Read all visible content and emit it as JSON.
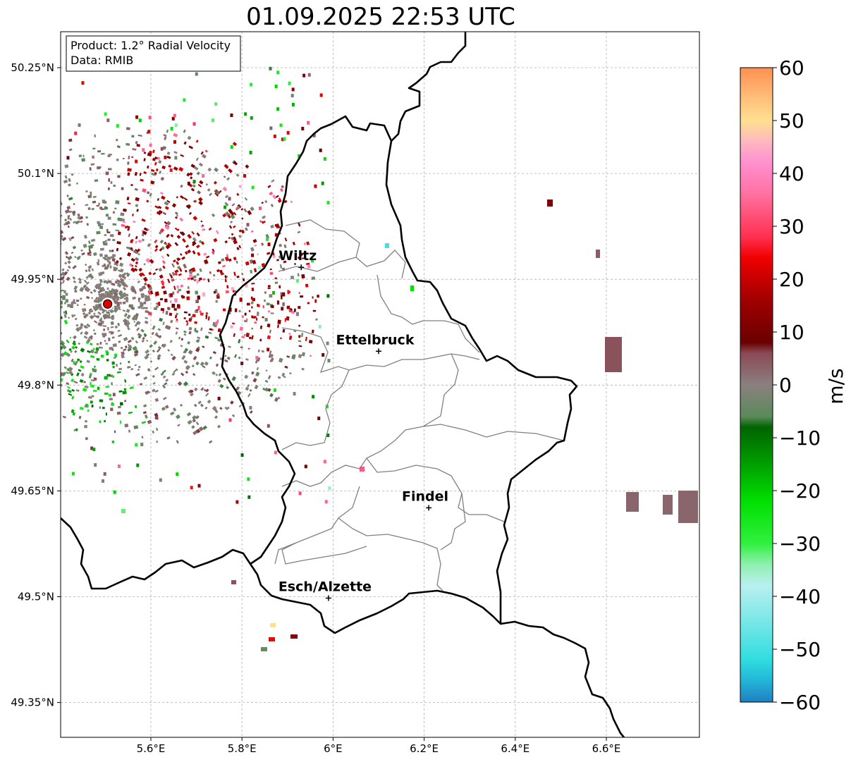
{
  "title": "01.09.2025 22:53 UTC",
  "info": {
    "product": "Product: 1.2° Radial Velocity",
    "data": "Data: RMIB"
  },
  "map": {
    "lon_range": [
      5.4,
      6.8
    ],
    "lat_range": [
      49.3,
      50.3
    ],
    "lat_ticks": [
      {
        "value": 50.25,
        "label": "50.25°N"
      },
      {
        "value": 50.1,
        "label": "50.1°N"
      },
      {
        "value": 49.95,
        "label": "49.95°N"
      },
      {
        "value": 49.8,
        "label": "49.8°N"
      },
      {
        "value": 49.65,
        "label": "49.65°N"
      },
      {
        "value": 49.5,
        "label": "49.5°N"
      },
      {
        "value": 49.35,
        "label": "49.35°N"
      }
    ],
    "lon_ticks": [
      {
        "value": 5.6,
        "label": "5.6°E"
      },
      {
        "value": 5.8,
        "label": "5.8°E"
      },
      {
        "value": 6.0,
        "label": "6°E"
      },
      {
        "value": 6.2,
        "label": "6.2°E"
      },
      {
        "value": 6.4,
        "label": "6.4°E"
      },
      {
        "value": 6.6,
        "label": "6.6°E"
      }
    ],
    "radar_site": {
      "lon": 5.505,
      "lat": 49.915
    },
    "cities": [
      {
        "name": "Wiltz",
        "lon": 5.93,
        "lat": 49.967
      },
      {
        "name": "Ettelbruck",
        "lon": 6.1,
        "lat": 49.848
      },
      {
        "name": "Findel",
        "lon": 6.21,
        "lat": 49.626
      },
      {
        "name": "Esch/Alzette",
        "lon": 5.99,
        "lat": 49.498
      }
    ]
  },
  "colorbar": {
    "label": "m/s",
    "min": -60,
    "max": 60,
    "ticks": [
      {
        "value": 60,
        "label": "60"
      },
      {
        "value": 50,
        "label": "50"
      },
      {
        "value": 40,
        "label": "40"
      },
      {
        "value": 30,
        "label": "30"
      },
      {
        "value": 20,
        "label": "20"
      },
      {
        "value": 10,
        "label": "10"
      },
      {
        "value": 0,
        "label": "0"
      },
      {
        "value": -10,
        "label": "−10"
      },
      {
        "value": -20,
        "label": "−20"
      },
      {
        "value": -30,
        "label": "−30"
      },
      {
        "value": -40,
        "label": "−40"
      },
      {
        "value": -50,
        "label": "−50"
      },
      {
        "value": -60,
        "label": "−60"
      }
    ],
    "stops": [
      {
        "v": -60,
        "c": "#2080c0"
      },
      {
        "v": -56,
        "c": "#22b4d8"
      },
      {
        "v": -52,
        "c": "#30dde0"
      },
      {
        "v": -44,
        "c": "#80e8e8"
      },
      {
        "v": -38,
        "c": "#b8f0f0"
      },
      {
        "v": -34,
        "c": "#90f0b0"
      },
      {
        "v": -30,
        "c": "#30f040"
      },
      {
        "v": -22,
        "c": "#00e000"
      },
      {
        "v": -16,
        "c": "#00a800"
      },
      {
        "v": -8,
        "c": "#006400"
      },
      {
        "v": -6,
        "c": "#5a8a5a"
      },
      {
        "v": 0,
        "c": "#8a8080"
      },
      {
        "v": 6,
        "c": "#8a4a55"
      },
      {
        "v": 8,
        "c": "#6a0000"
      },
      {
        "v": 16,
        "c": "#a00000"
      },
      {
        "v": 24,
        "c": "#f00000"
      },
      {
        "v": 28,
        "c": "#ff3050"
      },
      {
        "v": 36,
        "c": "#ff70a0"
      },
      {
        "v": 42,
        "c": "#ff90d0"
      },
      {
        "v": 46,
        "c": "#ffb8c0"
      },
      {
        "v": 50,
        "c": "#ffe090"
      },
      {
        "v": 56,
        "c": "#ffb070"
      },
      {
        "v": 60,
        "c": "#ff9050"
      }
    ]
  }
}
